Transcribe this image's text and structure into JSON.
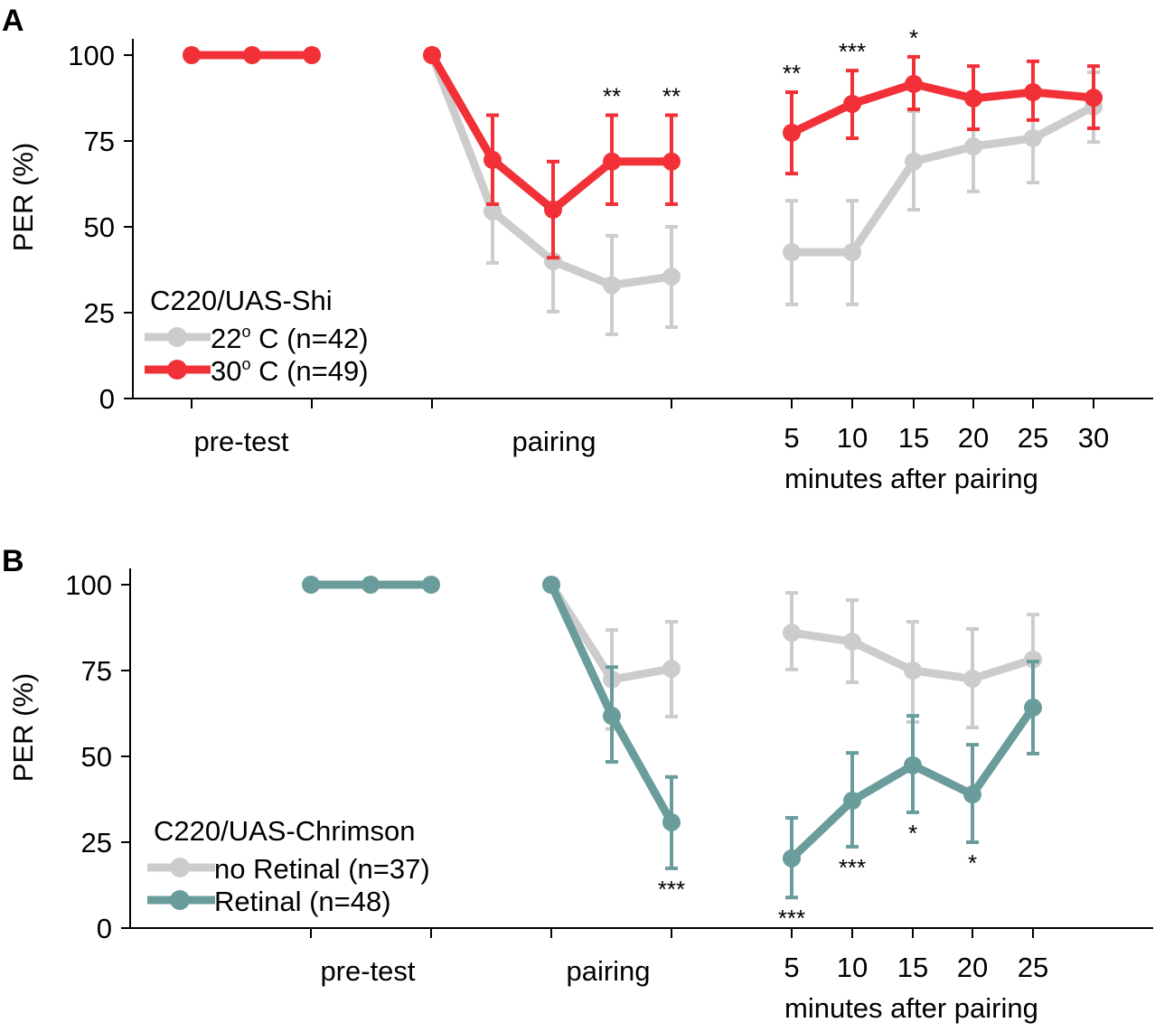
{
  "figure": {
    "panels": [
      "A",
      "B"
    ]
  },
  "chart_data": [
    {
      "panel": "A",
      "type": "line",
      "title": "",
      "ylabel": "PER (%)",
      "xlabel": "minutes after pairing",
      "ylim": [
        0,
        100
      ],
      "yticks": [
        0,
        25,
        50,
        75,
        100
      ],
      "grid": false,
      "legend_placement": "bottom-left",
      "legend_title": "C220/UAS-Shi",
      "group_labels": [
        {
          "label": "pre-test",
          "span": [
            1,
            3
          ]
        },
        {
          "label": "pairing",
          "span": [
            4,
            8
          ]
        }
      ],
      "x_positions": [
        "pre1",
        "pre2",
        "pre3",
        "pair1",
        "pair2",
        "pair3",
        "pair4",
        "pair5",
        "5",
        "10",
        "15",
        "20",
        "25",
        "30"
      ],
      "time_tick_labels": [
        "5",
        "10",
        "15",
        "20",
        "25",
        "30"
      ],
      "series": [
        {
          "name": "22o C (n=42)",
          "legend_label": "22",
          "legend_suffix": " C (n=42)",
          "color": "#cccccc",
          "segments": [
            {
              "x": [
                3,
                4,
                5,
                6,
                7
              ],
              "values": [
                100,
                54.5,
                40,
                33,
                35.5
              ],
              "err_low": [
                null,
                39.5,
                25.3,
                18.7,
                20.8
              ],
              "err_high": [
                null,
                70,
                55,
                47.4,
                50
              ]
            },
            {
              "x": [
                8,
                9,
                10,
                11,
                12,
                13
              ],
              "values": [
                42.6,
                42.6,
                69,
                73.4,
                75.8,
                85
              ],
              "err_low": [
                27.4,
                27.4,
                55,
                60.3,
                62.9,
                74.7
              ],
              "err_high": [
                57.6,
                57.6,
                83.7,
                86,
                88.5,
                95
              ]
            }
          ]
        },
        {
          "name": "30o C (n=49)",
          "legend_label": "30",
          "legend_suffix": " C (n=49)",
          "color": "#f23037",
          "segments": [
            {
              "x": [
                0,
                1,
                2
              ],
              "values": [
                100,
                100,
                100
              ],
              "err_low": [
                null,
                null,
                null
              ],
              "err_high": [
                null,
                null,
                null
              ]
            },
            {
              "x": [
                3,
                4,
                5,
                6,
                7
              ],
              "values": [
                100,
                69.5,
                55,
                69,
                69
              ],
              "err_low": [
                null,
                56.6,
                41,
                56.6,
                56.6
              ],
              "err_high": [
                null,
                82.5,
                69,
                82.5,
                82.5
              ]
            },
            {
              "x": [
                8,
                9,
                10,
                11,
                12,
                13
              ],
              "values": [
                77.4,
                85.8,
                91.6,
                87.4,
                89.2,
                87.6
              ],
              "err_low": [
                65.5,
                75.8,
                84.2,
                78.4,
                81.1,
                78.7
              ],
              "err_high": [
                89.2,
                95.5,
                99.5,
                96.8,
                98.2,
                96.8
              ]
            }
          ]
        }
      ],
      "annotations": [
        {
          "x": 6,
          "text": "**",
          "anchor_value": 82.5,
          "side": "above"
        },
        {
          "x": 7,
          "text": "**",
          "anchor_value": 82.5,
          "side": "above"
        },
        {
          "x": 8,
          "text": "**",
          "anchor_value": 89.2,
          "side": "above"
        },
        {
          "x": 9,
          "text": "***",
          "anchor_value": 95.5,
          "side": "above"
        },
        {
          "x": 10,
          "text": "*",
          "anchor_value": 99.5,
          "side": "above"
        }
      ]
    },
    {
      "panel": "B",
      "type": "line",
      "title": "",
      "ylabel": "PER (%)",
      "xlabel": "minutes after pairing",
      "ylim": [
        0,
        100
      ],
      "yticks": [
        0,
        25,
        50,
        75,
        100
      ],
      "grid": false,
      "legend_placement": "bottom-left",
      "legend_title": "C220/UAS-Chrimson",
      "group_labels": [
        {
          "label": "pre-test",
          "span": [
            1,
            3
          ]
        },
        {
          "label": "pairing",
          "span": [
            4,
            6
          ]
        }
      ],
      "x_positions": [
        "pre1",
        "pre2",
        "pre3",
        "pair1",
        "pair2",
        "pair3",
        "5",
        "10",
        "15",
        "20",
        "25"
      ],
      "time_tick_labels": [
        "5",
        "10",
        "15",
        "20",
        "25"
      ],
      "series": [
        {
          "name": "no Retinal (n=37)",
          "legend_label": "no Retinal (n=37)",
          "color": "#cccccc",
          "segments": [
            {
              "x": [
                3,
                4,
                5
              ],
              "values": [
                100,
                72.4,
                75.5
              ],
              "err_low": [
                null,
                58,
                61.6
              ],
              "err_high": [
                null,
                86.8,
                89.2
              ]
            },
            {
              "x": [
                6,
                7,
                8,
                9,
                10
              ],
              "values": [
                86,
                83.4,
                75,
                72.6,
                78.2
              ],
              "err_low": [
                75.3,
                71.6,
                60,
                58.4,
                65
              ],
              "err_high": [
                97.6,
                95.5,
                89.2,
                87.1,
                91.3
              ]
            }
          ]
        },
        {
          "name": "Retinal (n=48)",
          "legend_label": "Retinal (n=48)",
          "color": "#6a9c9c",
          "segments": [
            {
              "x": [
                0,
                1,
                2
              ],
              "values": [
                100,
                100,
                100
              ],
              "err_low": [
                null,
                null,
                null
              ],
              "err_high": [
                null,
                null,
                null
              ]
            },
            {
              "x": [
                3,
                4,
                5
              ],
              "values": [
                100,
                61.8,
                30.8
              ],
              "err_low": [
                null,
                48.4,
                17.4
              ],
              "err_high": [
                null,
                76,
                44
              ]
            },
            {
              "x": [
                6,
                7,
                8,
                9,
                10
              ],
              "values": [
                20.3,
                37.1,
                47.4,
                38.9,
                64.2
              ],
              "err_low": [
                8.9,
                23.7,
                33.7,
                25,
                50.8
              ],
              "err_high": [
                32.1,
                51,
                61.8,
                53.4,
                77.6
              ]
            }
          ]
        }
      ],
      "annotations": [
        {
          "x": 5,
          "text": "***",
          "anchor_value": 17.4,
          "side": "below"
        },
        {
          "x": 6,
          "text": "***",
          "anchor_value": 8.9,
          "side": "below"
        },
        {
          "x": 7,
          "text": "***",
          "anchor_value": 23.7,
          "side": "below"
        },
        {
          "x": 8,
          "text": "*",
          "anchor_value": 33.7,
          "side": "below"
        },
        {
          "x": 9,
          "text": "*",
          "anchor_value": 25,
          "side": "below"
        }
      ]
    }
  ]
}
